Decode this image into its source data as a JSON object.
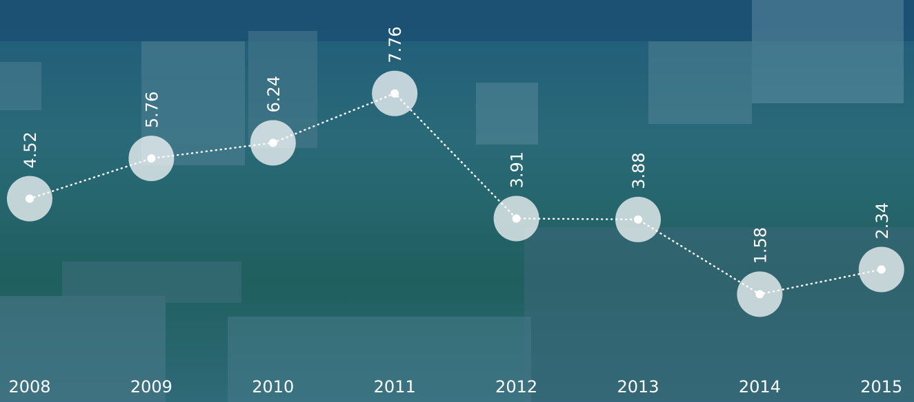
{
  "chart_data": {
    "type": "line",
    "categories": [
      "2008",
      "2009",
      "2010",
      "2011",
      "2012",
      "2013",
      "2014",
      "2015"
    ],
    "values": [
      4.52,
      5.76,
      6.24,
      7.76,
      3.91,
      3.88,
      1.58,
      2.34
    ],
    "color": "#ffffff",
    "ylim": [
      0,
      10
    ]
  }
}
